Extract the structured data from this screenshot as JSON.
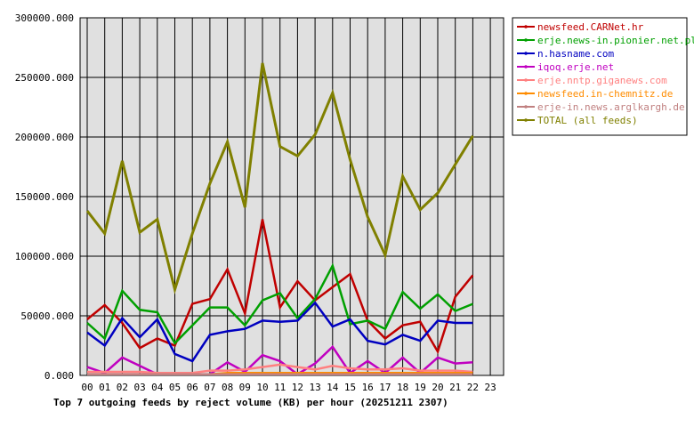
{
  "chart_data": {
    "type": "line",
    "title": "Top 7 outgoing feeds by reject volume (KB) per hour (20251211 2307)",
    "xlabel": "",
    "ylabel": "",
    "categories": [
      "00",
      "01",
      "02",
      "03",
      "04",
      "05",
      "06",
      "07",
      "08",
      "09",
      "10",
      "11",
      "12",
      "13",
      "14",
      "15",
      "16",
      "17",
      "18",
      "19",
      "20",
      "21",
      "22",
      "23"
    ],
    "y_ticks": [
      "0.000",
      "50000.000",
      "100000.000",
      "150000.000",
      "200000.000",
      "250000.000",
      "300000.000"
    ],
    "ylim": [
      0,
      300000
    ],
    "grid": true,
    "legend_position": "top-right",
    "background_color": "#e0e0e0",
    "series": [
      {
        "name": "newsfeed.CARNet.hr",
        "color": "#c00000",
        "values": [
          47000,
          59000,
          44000,
          23000,
          31000,
          25000,
          60000,
          64000,
          89000,
          52000,
          131000,
          57000,
          79000,
          63000,
          74000,
          85000,
          46000,
          31000,
          42000,
          45000,
          20000,
          66000,
          84000,
          null
        ]
      },
      {
        "name": "erje.news-in.pionier.net.pl",
        "color": "#00a000",
        "values": [
          44000,
          31000,
          71000,
          55000,
          53000,
          27000,
          42000,
          57000,
          57000,
          42000,
          63000,
          69000,
          48000,
          64000,
          92000,
          43000,
          46000,
          39000,
          70000,
          56000,
          68000,
          54000,
          60000,
          null
        ]
      },
      {
        "name": "n.hasname.com",
        "color": "#0000c0",
        "values": [
          36000,
          25000,
          48000,
          32000,
          47000,
          18000,
          12000,
          34000,
          37000,
          39000,
          46000,
          45000,
          46000,
          61000,
          41000,
          47000,
          29000,
          26000,
          34000,
          29000,
          46000,
          44000,
          44000,
          null
        ]
      },
      {
        "name": "iqoq.erje.net",
        "color": "#c000c0",
        "values": [
          7000,
          2000,
          15000,
          8000,
          1000,
          1000,
          1000,
          1000,
          11000,
          3000,
          17000,
          12000,
          1000,
          10000,
          24000,
          2000,
          12000,
          2000,
          15000,
          2000,
          15000,
          10000,
          11000,
          null
        ]
      },
      {
        "name": "erje.nntp.giganews.com",
        "color": "#ff8080",
        "values": [
          3000,
          3000,
          3000,
          3000,
          2000,
          2000,
          2000,
          4000,
          4000,
          5000,
          7000,
          9000,
          7000,
          5000,
          8000,
          6000,
          5000,
          5000,
          6000,
          4000,
          4000,
          4000,
          3000,
          null
        ]
      },
      {
        "name": "newsfeed.in-chemnitz.de",
        "color": "#ff8c00",
        "values": [
          1000,
          1000,
          1000,
          1000,
          1000,
          1000,
          1000,
          1000,
          2000,
          2000,
          2000,
          2000,
          2000,
          2000,
          2000,
          2000,
          2000,
          2000,
          2000,
          2000,
          2000,
          2000,
          2000,
          null
        ]
      },
      {
        "name": "erje-in.news.arglkargh.de",
        "color": "#c08080",
        "values": [
          1000,
          1000,
          1000,
          1000,
          1000,
          1000,
          1000,
          1000,
          1000,
          1000,
          1000,
          1000,
          1000,
          1000,
          1000,
          1000,
          1000,
          1000,
          1000,
          1000,
          1000,
          1000,
          1000,
          null
        ]
      },
      {
        "name": "TOTAL (all feeds)",
        "color": "#808000",
        "values": [
          138000,
          119000,
          180000,
          120000,
          131000,
          72000,
          119000,
          161000,
          196000,
          141000,
          262000,
          192000,
          184000,
          202000,
          237000,
          181000,
          133000,
          101000,
          167000,
          139000,
          153000,
          177000,
          201000,
          null
        ]
      }
    ]
  }
}
